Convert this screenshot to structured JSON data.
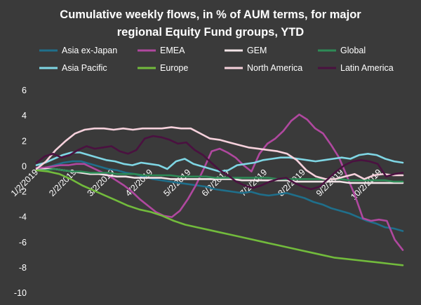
{
  "chart_data": {
    "type": "line",
    "title_lines": [
      "Cumulative weekly flows, in % of AUM terms, for major",
      "regional Equity Fund groups, YTD"
    ],
    "xlabel": "",
    "ylabel": "",
    "ylim": [
      -10,
      6
    ],
    "yticks": [
      6,
      4,
      2,
      0,
      -2,
      -4,
      -6,
      -8,
      -10
    ],
    "xticks": [
      "1/2/2019",
      "2/2/2019",
      "3/2/2019",
      "4/2/2019",
      "5/2/2019",
      "6/2/2019",
      "7/2/2019",
      "8/2/2019",
      "9/2/2019",
      "10/2/2019"
    ],
    "x_range_weeks": [
      0,
      41.5
    ],
    "grid": false,
    "legend": "top",
    "series": [
      {
        "name": "Asia ex-Japan",
        "color": "#1f6f8b",
        "values": [
          -0.2,
          -0.1,
          0.1,
          0.3,
          0.4,
          0.4,
          0.2,
          0,
          -0.2,
          -0.3,
          -0.5,
          -0.6,
          -0.8,
          -1.0,
          -1.1,
          -1.2,
          -1.3,
          -1.4,
          -1.5,
          -1.6,
          -1.8,
          -1.9,
          -2.0,
          -2.1,
          -2.0,
          -2.2,
          -2.3,
          -2.2,
          -2.1,
          -2.3,
          -2.5,
          -2.8,
          -3.0,
          -3.3,
          -3.5,
          -3.7,
          -4.0,
          -4.3,
          -4.5,
          -4.8,
          -4.9,
          -5.1
        ]
      },
      {
        "name": "EMEA",
        "color": "#b0489f",
        "values": [
          -0.1,
          -0.1,
          0,
          0.1,
          0.1,
          0.2,
          0.2,
          -0.1,
          -0.4,
          -0.7,
          -1.1,
          -1.5,
          -2.0,
          -2.6,
          -3.1,
          -3.6,
          -3.9,
          -4.0,
          -3.5,
          -2.6,
          -1.5,
          -0.2,
          1.2,
          1.4,
          1.1,
          0.7,
          0.1,
          -0.4,
          1.0,
          1.8,
          2.2,
          2.8,
          3.6,
          4.1,
          3.7,
          3.0,
          2.6,
          1.7,
          0.7,
          -0.8,
          -2.3,
          -4.1,
          -4.3,
          -4.2,
          -4.3,
          -5.8,
          -6.6
        ]
      },
      {
        "name": "GEM",
        "color": "#f2e4e7",
        "values": [
          -0.3,
          -0.2,
          -0.2,
          -0.3,
          -0.4,
          -0.5,
          -0.6,
          -0.6,
          -0.7,
          -0.8,
          -0.8,
          -0.9,
          -0.9,
          -0.9,
          -0.9,
          -1.0,
          -1.0,
          -1.0,
          -1.0,
          -1.0,
          -1.0,
          -1.0,
          -1.0,
          -1.1,
          -1.1,
          -1.1,
          -1.1,
          -1.1,
          -1.1,
          -1.2,
          -1.2,
          -1.2,
          -1.2,
          -1.2,
          -1.2,
          -1.3,
          -1.3,
          -1.3,
          -1.3,
          -1.3,
          -1.3,
          -1.3
        ]
      },
      {
        "name": "Global",
        "color": "#2e8b57",
        "values": [
          -0.3,
          -0.3,
          -0.2,
          -0.3,
          -0.4,
          -0.4,
          -0.5,
          -0.5,
          -0.5,
          -0.6,
          -0.6,
          -0.6,
          -0.7,
          -0.7,
          -0.7,
          -0.7,
          -0.8,
          -0.8,
          -0.8,
          -0.8,
          -0.9,
          -0.9,
          -0.9,
          -0.9,
          -0.9,
          -0.9,
          -0.9,
          -1.0,
          -1.0,
          -1.0,
          -1.0,
          -1.0,
          -1.0,
          -1.0,
          -1.0,
          -1.1,
          -1.1,
          -1.1,
          -1.1,
          -1.1,
          -1.2,
          -1.2
        ]
      },
      {
        "name": "Asia Pacific",
        "color": "#7fd6e4",
        "values": [
          0.1,
          0.3,
          0.6,
          0.9,
          1.1,
          1.1,
          0.9,
          0.7,
          0.5,
          0.4,
          0.2,
          0.1,
          0.3,
          0.2,
          0.1,
          -0.2,
          0.4,
          0.6,
          0.2,
          0.0,
          -0.2,
          -0.4,
          -0.3,
          0.1,
          0.2,
          0.3,
          0.5,
          0.6,
          0.7,
          0.7,
          0.6,
          0.5,
          0.4,
          0.5,
          0.6,
          0.7,
          0.6,
          0.9,
          1.0,
          0.9,
          0.6,
          0.4,
          0.3
        ]
      },
      {
        "name": "Europe",
        "color": "#72bb3c",
        "values": [
          -0.3,
          -0.4,
          -0.6,
          -1.0,
          -1.5,
          -1.9,
          -2.3,
          -2.7,
          -3.1,
          -3.4,
          -3.6,
          -3.9,
          -4.3,
          -4.6,
          -4.8,
          -5.0,
          -5.2,
          -5.4,
          -5.6,
          -5.8,
          -6.0,
          -6.2,
          -6.4,
          -6.6,
          -6.8,
          -7.0,
          -7.2,
          -7.3,
          -7.4,
          -7.5,
          -7.6,
          -7.7,
          -7.8
        ]
      },
      {
        "name": "North America",
        "color": "#f6d1dc",
        "values": [
          -0.2,
          0.4,
          1.3,
          2.0,
          2.6,
          2.9,
          3.0,
          3.0,
          2.9,
          3.0,
          2.9,
          3.0,
          3.0,
          3.0,
          3.1,
          3.0,
          3.0,
          2.6,
          2.2,
          2.1,
          1.9,
          1.7,
          1.5,
          1.4,
          1.3,
          1.2,
          1.0,
          0.5,
          -0.3,
          -0.8,
          -1.0,
          -1.0,
          -0.8,
          -0.6,
          -1.0,
          -0.7,
          -0.6,
          -0.7,
          -0.7
        ]
      },
      {
        "name": "Latin  America",
        "color": "#4a1140",
        "values": [
          0.3,
          0.8,
          1.0,
          0.7,
          0.9,
          1.3,
          1.6,
          1.4,
          1.5,
          1.6,
          1.2,
          1.0,
          1.3,
          2.2,
          2.4,
          2.3,
          2.1,
          1.8,
          1.9,
          1.3,
          0.9,
          0.3,
          -0.3,
          -0.7,
          -1.2,
          -1.5,
          -1.7,
          -1.5,
          -1.2,
          -1.0,
          -0.9,
          -1.3,
          -1.6,
          -1.8,
          -1.6,
          -1.0,
          -0.4,
          0.1,
          0.4,
          0.5,
          0.4,
          0.2,
          -0.8,
          -0.6,
          -0.5
        ]
      }
    ]
  }
}
